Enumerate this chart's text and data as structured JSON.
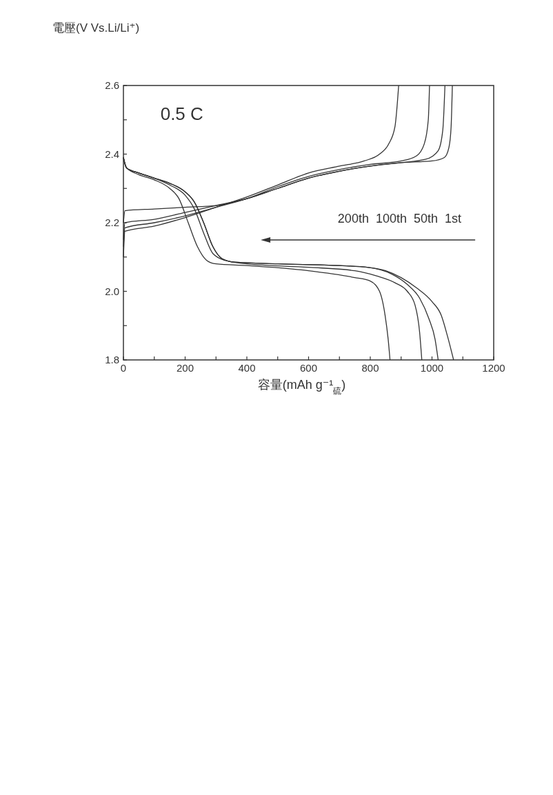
{
  "chart_data": {
    "type": "line",
    "xlabel": "容量(mAh g⁻¹$_{硫}$)",
    "ylabel": "電壓(V Vs.Li/Li⁺)",
    "xlim": [
      0,
      1200
    ],
    "ylim": [
      1.8,
      2.6
    ],
    "xticks": [
      0,
      {
        "value": 100,
        "label": null
      },
      200,
      {
        "value": 300,
        "label": null
      },
      400,
      {
        "value": 500,
        "label": null
      },
      600,
      {
        "value": 700,
        "label": null
      },
      800,
      {
        "value": 900,
        "label": null
      },
      1000,
      {
        "value": 1100,
        "label": null
      },
      1200
    ],
    "yticks": [
      1.8,
      {
        "value": 1.9,
        "label": null
      },
      {
        "value": 2.0,
        "label": "2.0"
      },
      {
        "value": 2.1,
        "label": null
      },
      2.2,
      {
        "value": 2.3,
        "label": null
      },
      2.4,
      {
        "value": 2.5,
        "label": null
      },
      2.6
    ],
    "grid": false,
    "annotations": [
      "0.5 C",
      "200th  100th  50th  1st"
    ],
    "series": [
      {
        "color": "#333333",
        "x": [
          0,
          5,
          100,
          200,
          300,
          400,
          500,
          600,
          700,
          800,
          900,
          1000,
          1040,
          1055,
          1062,
          1066
        ],
        "values": [
          2.2,
          2.235,
          2.24,
          2.245,
          2.25,
          2.27,
          2.3,
          2.33,
          2.35,
          2.365,
          2.375,
          2.38,
          2.39,
          2.42,
          2.48,
          2.6
        ]
      },
      {
        "color": "#333333",
        "x": [
          0,
          5,
          100,
          200,
          300,
          400,
          500,
          600,
          700,
          800,
          900,
          980,
          1020,
          1035,
          1042
        ],
        "values": [
          2.15,
          2.2,
          2.21,
          2.23,
          2.25,
          2.27,
          2.3,
          2.33,
          2.35,
          2.365,
          2.375,
          2.385,
          2.41,
          2.47,
          2.6
        ]
      },
      {
        "color": "#333333",
        "x": [
          0,
          5,
          100,
          200,
          300,
          400,
          500,
          600,
          700,
          800,
          900,
          950,
          975,
          988,
          992
        ],
        "values": [
          2.13,
          2.185,
          2.2,
          2.22,
          2.245,
          2.27,
          2.305,
          2.335,
          2.355,
          2.37,
          2.38,
          2.395,
          2.43,
          2.5,
          2.6
        ]
      },
      {
        "color": "#333333",
        "x": [
          0,
          5,
          100,
          200,
          300,
          400,
          500,
          600,
          700,
          780,
          830,
          860,
          880,
          892
        ],
        "values": [
          2.1,
          2.175,
          2.19,
          2.215,
          2.245,
          2.275,
          2.31,
          2.345,
          2.365,
          2.38,
          2.4,
          2.43,
          2.48,
          2.6
        ]
      },
      {
        "color": "#333333",
        "x": [
          0,
          10,
          50,
          100,
          150,
          200,
          230,
          260,
          290,
          320,
          360,
          500,
          700,
          790,
          850,
          900,
          950,
          1000,
          1030,
          1050,
          1070
        ],
        "values": [
          2.39,
          2.36,
          2.345,
          2.33,
          2.315,
          2.29,
          2.26,
          2.2,
          2.13,
          2.095,
          2.085,
          2.08,
          2.075,
          2.07,
          2.06,
          2.04,
          2.01,
          1.97,
          1.93,
          1.87,
          1.8
        ]
      },
      {
        "color": "#333333",
        "x": [
          0,
          10,
          50,
          100,
          150,
          200,
          230,
          260,
          290,
          320,
          360,
          500,
          700,
          790,
          870,
          920,
          960,
          990,
          1010,
          1020
        ],
        "values": [
          2.39,
          2.36,
          2.345,
          2.33,
          2.315,
          2.29,
          2.26,
          2.2,
          2.13,
          2.095,
          2.085,
          2.08,
          2.075,
          2.07,
          2.05,
          2.02,
          1.98,
          1.92,
          1.86,
          1.8
        ]
      },
      {
        "color": "#333333",
        "x": [
          0,
          10,
          50,
          100,
          150,
          200,
          230,
          260,
          290,
          330,
          400,
          600,
          750,
          820,
          880,
          920,
          945,
          960,
          967
        ],
        "values": [
          2.39,
          2.36,
          2.345,
          2.33,
          2.31,
          2.28,
          2.24,
          2.17,
          2.11,
          2.09,
          2.08,
          2.07,
          2.06,
          2.045,
          2.025,
          2.0,
          1.96,
          1.88,
          1.8
        ]
      },
      {
        "color": "#333333",
        "x": [
          0,
          10,
          50,
          100,
          150,
          180,
          210,
          240,
          270,
          300,
          400,
          600,
          750,
          800,
          830,
          848,
          858,
          864
        ],
        "values": [
          2.39,
          2.36,
          2.34,
          2.325,
          2.3,
          2.27,
          2.2,
          2.13,
          2.09,
          2.08,
          2.075,
          2.06,
          2.04,
          2.03,
          2.0,
          1.93,
          1.86,
          1.8
        ]
      }
    ]
  }
}
